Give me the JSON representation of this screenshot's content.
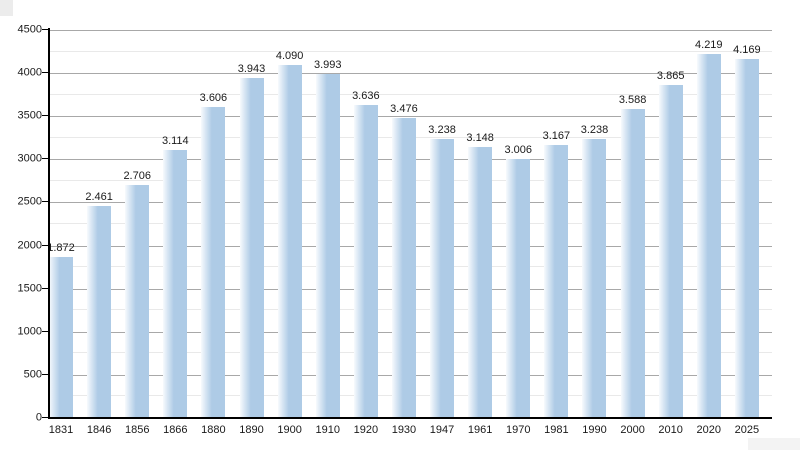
{
  "chart_data": {
    "type": "bar",
    "title": "",
    "xlabel": "",
    "ylabel": "",
    "categories": [
      "1831",
      "1846",
      "1856",
      "1866",
      "1880",
      "1890",
      "1900",
      "1910",
      "1920",
      "1930",
      "1947",
      "1961",
      "1970",
      "1981",
      "1990",
      "2000",
      "2010",
      "2020",
      "2025"
    ],
    "values": [
      1872,
      2461,
      2706,
      3114,
      3606,
      3943,
      4090,
      3993,
      3636,
      3476,
      3238,
      3148,
      3006,
      3167,
      3238,
      3588,
      3865,
      4219,
      4169
    ],
    "value_labels": [
      "1.872",
      "2.461",
      "2.706",
      "3.114",
      "3.606",
      "3.943",
      "4.090",
      "3.993",
      "3.636",
      "3.476",
      "3.238",
      "3.148",
      "3.006",
      "3.167",
      "3.238",
      "3.588",
      "3.865",
      "4.219",
      "4.169"
    ],
    "ylim": [
      0,
      4500
    ],
    "y_major_step": 500,
    "y_minor_step": 250,
    "y_tick_labels": [
      "0",
      "500",
      "1000",
      "1500",
      "2000",
      "2500",
      "3000",
      "3500",
      "4000",
      "4500"
    ],
    "grid": true,
    "legend": "none",
    "colors": {
      "bar_fill": "#aecbe6",
      "bar_fill_light": "#f7fafd",
      "gridline_major": "#a8a8a8",
      "gridline_minor": "#e9e9e9",
      "axis": "#000000",
      "label_text": "#1a1a1a",
      "background": "#ffffff",
      "artifact_top_left": "#ececec",
      "artifact_bottom_right": "#f3f3f3"
    }
  }
}
